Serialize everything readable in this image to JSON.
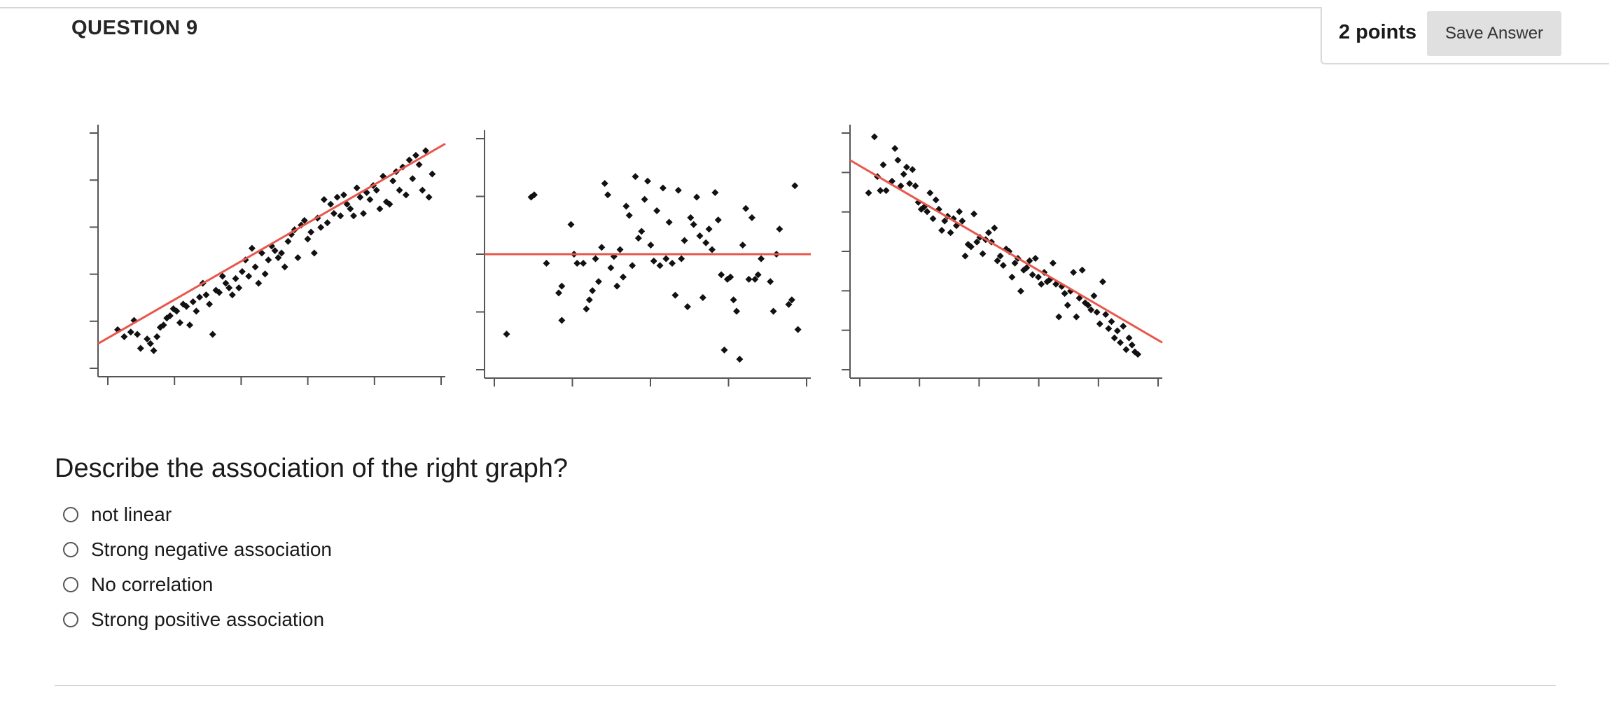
{
  "question": {
    "title": "QUESTION 9",
    "points": "2 points",
    "save_label": "Save Answer",
    "text": "Describe the association of the right graph?",
    "options": [
      {
        "label": "not linear",
        "selected": false
      },
      {
        "label": "Strong negative association",
        "selected": false
      },
      {
        "label": "No correlation",
        "selected": false
      },
      {
        "label": "Strong positive association",
        "selected": false
      }
    ]
  },
  "colors": {
    "trend_line": "#e8574c",
    "points": "#111111",
    "axis": "#555555",
    "button_bg": "#e0e0e0"
  },
  "chart_data": [
    {
      "type": "scatter",
      "title": "",
      "xlabel": "",
      "ylabel": "",
      "xlim": [
        0,
        10
      ],
      "ylim": [
        0,
        10
      ],
      "x_ticks": 6,
      "y_ticks": 6,
      "trend": [
        [
          0,
          1.0
        ],
        [
          10,
          9.6
        ]
      ],
      "points": [
        [
          0.3,
          1.6
        ],
        [
          0.5,
          1.3
        ],
        [
          0.7,
          1.5
        ],
        [
          0.8,
          2.0
        ],
        [
          0.9,
          1.4
        ],
        [
          1.0,
          0.8
        ],
        [
          1.2,
          1.2
        ],
        [
          1.3,
          1.0
        ],
        [
          1.4,
          0.7
        ],
        [
          1.5,
          1.3
        ],
        [
          1.6,
          1.7
        ],
        [
          1.7,
          1.8
        ],
        [
          1.8,
          2.1
        ],
        [
          1.9,
          2.2
        ],
        [
          2.0,
          2.5
        ],
        [
          2.1,
          2.4
        ],
        [
          2.2,
          1.9
        ],
        [
          2.3,
          2.7
        ],
        [
          2.4,
          2.6
        ],
        [
          2.5,
          1.8
        ],
        [
          2.6,
          2.8
        ],
        [
          2.7,
          2.4
        ],
        [
          2.8,
          3.0
        ],
        [
          2.9,
          3.6
        ],
        [
          3.0,
          3.1
        ],
        [
          3.1,
          2.7
        ],
        [
          3.2,
          1.4
        ],
        [
          3.3,
          3.3
        ],
        [
          3.4,
          3.2
        ],
        [
          3.5,
          3.9
        ],
        [
          3.6,
          3.6
        ],
        [
          3.7,
          3.4
        ],
        [
          3.8,
          3.1
        ],
        [
          3.9,
          3.8
        ],
        [
          4.0,
          3.4
        ],
        [
          4.1,
          4.1
        ],
        [
          4.2,
          4.6
        ],
        [
          4.3,
          3.9
        ],
        [
          4.4,
          5.1
        ],
        [
          4.5,
          4.3
        ],
        [
          4.6,
          3.6
        ],
        [
          4.7,
          4.9
        ],
        [
          4.8,
          4.0
        ],
        [
          4.9,
          4.6
        ],
        [
          5.0,
          5.2
        ],
        [
          5.1,
          5.0
        ],
        [
          5.2,
          4.7
        ],
        [
          5.3,
          4.9
        ],
        [
          5.4,
          4.3
        ],
        [
          5.5,
          5.4
        ],
        [
          5.6,
          5.7
        ],
        [
          5.7,
          5.9
        ],
        [
          5.8,
          4.7
        ],
        [
          5.9,
          6.1
        ],
        [
          6.0,
          6.3
        ],
        [
          6.1,
          5.5
        ],
        [
          6.2,
          5.8
        ],
        [
          6.3,
          4.9
        ],
        [
          6.4,
          6.4
        ],
        [
          6.5,
          6.0
        ],
        [
          6.6,
          7.2
        ],
        [
          6.7,
          6.2
        ],
        [
          6.8,
          7.0
        ],
        [
          6.9,
          6.6
        ],
        [
          7.0,
          7.3
        ],
        [
          7.1,
          6.5
        ],
        [
          7.2,
          7.4
        ],
        [
          7.3,
          7.0
        ],
        [
          7.4,
          6.8
        ],
        [
          7.5,
          6.5
        ],
        [
          7.6,
          7.7
        ],
        [
          7.7,
          7.3
        ],
        [
          7.8,
          6.6
        ],
        [
          7.9,
          7.5
        ],
        [
          8.0,
          7.2
        ],
        [
          8.1,
          7.8
        ],
        [
          8.2,
          7.6
        ],
        [
          8.3,
          6.8
        ],
        [
          8.4,
          8.2
        ],
        [
          8.5,
          7.1
        ],
        [
          8.6,
          7.0
        ],
        [
          8.7,
          8.0
        ],
        [
          8.8,
          8.4
        ],
        [
          8.9,
          7.6
        ],
        [
          9.0,
          8.6
        ],
        [
          9.1,
          7.4
        ],
        [
          9.2,
          8.9
        ],
        [
          9.3,
          8.1
        ],
        [
          9.4,
          9.1
        ],
        [
          9.5,
          8.7
        ],
        [
          9.6,
          7.6
        ],
        [
          9.7,
          9.3
        ],
        [
          9.8,
          7.3
        ],
        [
          9.9,
          8.3
        ]
      ]
    },
    {
      "type": "scatter",
      "title": "",
      "xlabel": "",
      "ylabel": "",
      "xlim": [
        0,
        10
      ],
      "ylim": [
        0,
        10
      ],
      "x_ticks": 5,
      "y_ticks": 5,
      "trend": [
        [
          0,
          5.0
        ],
        [
          10,
          5.0
        ]
      ],
      "points": [
        [
          0.4,
          1.5
        ],
        [
          1.2,
          7.5
        ],
        [
          1.3,
          7.6
        ],
        [
          1.7,
          4.6
        ],
        [
          2.1,
          3.3
        ],
        [
          2.2,
          3.6
        ],
        [
          2.2,
          2.1
        ],
        [
          2.5,
          6.3
        ],
        [
          2.6,
          5.0
        ],
        [
          2.7,
          4.6
        ],
        [
          2.9,
          4.6
        ],
        [
          3.0,
          2.6
        ],
        [
          3.1,
          3.0
        ],
        [
          3.2,
          3.4
        ],
        [
          3.3,
          4.8
        ],
        [
          3.4,
          3.8
        ],
        [
          3.5,
          5.3
        ],
        [
          3.6,
          8.1
        ],
        [
          3.7,
          7.6
        ],
        [
          3.8,
          4.4
        ],
        [
          3.9,
          4.9
        ],
        [
          4.0,
          3.6
        ],
        [
          4.1,
          5.2
        ],
        [
          4.2,
          4.0
        ],
        [
          4.3,
          7.1
        ],
        [
          4.4,
          6.7
        ],
        [
          4.5,
          4.5
        ],
        [
          4.6,
          8.4
        ],
        [
          4.7,
          5.7
        ],
        [
          4.8,
          6.0
        ],
        [
          4.9,
          7.4
        ],
        [
          5.0,
          8.2
        ],
        [
          5.1,
          5.4
        ],
        [
          5.2,
          4.7
        ],
        [
          5.3,
          6.9
        ],
        [
          5.4,
          4.5
        ],
        [
          5.5,
          7.9
        ],
        [
          5.6,
          4.8
        ],
        [
          5.7,
          6.4
        ],
        [
          5.8,
          4.6
        ],
        [
          5.9,
          3.2
        ],
        [
          6.0,
          7.8
        ],
        [
          6.1,
          4.8
        ],
        [
          6.2,
          5.6
        ],
        [
          6.3,
          2.7
        ],
        [
          6.4,
          6.6
        ],
        [
          6.5,
          6.3
        ],
        [
          6.6,
          7.5
        ],
        [
          6.7,
          5.8
        ],
        [
          6.8,
          3.1
        ],
        [
          6.9,
          5.5
        ],
        [
          7.0,
          6.1
        ],
        [
          7.1,
          5.2
        ],
        [
          7.2,
          7.7
        ],
        [
          7.3,
          6.5
        ],
        [
          7.4,
          4.1
        ],
        [
          7.5,
          0.8
        ],
        [
          7.6,
          3.9
        ],
        [
          7.7,
          4.0
        ],
        [
          7.8,
          3.0
        ],
        [
          7.9,
          2.5
        ],
        [
          8.0,
          0.4
        ],
        [
          8.1,
          5.4
        ],
        [
          8.2,
          7.0
        ],
        [
          8.3,
          3.9
        ],
        [
          8.4,
          6.6
        ],
        [
          8.5,
          3.9
        ],
        [
          8.6,
          4.1
        ],
        [
          8.7,
          4.8
        ],
        [
          9.0,
          3.8
        ],
        [
          9.1,
          2.5
        ],
        [
          9.2,
          5.0
        ],
        [
          9.3,
          6.1
        ],
        [
          9.6,
          2.8
        ],
        [
          9.7,
          3.0
        ],
        [
          9.8,
          8.0
        ],
        [
          9.9,
          1.7
        ]
      ]
    },
    {
      "type": "scatter",
      "title": "",
      "xlabel": "",
      "ylabel": "",
      "xlim": [
        0,
        10
      ],
      "ylim": [
        0,
        10
      ],
      "x_ticks": 6,
      "y_ticks": 7,
      "trend": [
        [
          0,
          8.9
        ],
        [
          10,
          1.1
        ]
      ],
      "points": [
        [
          0.3,
          7.5
        ],
        [
          0.5,
          9.9
        ],
        [
          0.6,
          8.2
        ],
        [
          0.7,
          7.6
        ],
        [
          0.8,
          8.7
        ],
        [
          0.9,
          7.6
        ],
        [
          1.1,
          8.0
        ],
        [
          1.2,
          9.4
        ],
        [
          1.3,
          8.9
        ],
        [
          1.4,
          7.8
        ],
        [
          1.5,
          8.3
        ],
        [
          1.6,
          8.6
        ],
        [
          1.7,
          7.9
        ],
        [
          1.8,
          8.5
        ],
        [
          1.9,
          7.8
        ],
        [
          2.0,
          7.1
        ],
        [
          2.1,
          6.8
        ],
        [
          2.2,
          6.9
        ],
        [
          2.3,
          6.7
        ],
        [
          2.4,
          7.5
        ],
        [
          2.5,
          6.4
        ],
        [
          2.6,
          7.2
        ],
        [
          2.7,
          6.8
        ],
        [
          2.8,
          5.9
        ],
        [
          2.9,
          6.3
        ],
        [
          3.0,
          6.5
        ],
        [
          3.1,
          5.8
        ],
        [
          3.2,
          6.4
        ],
        [
          3.3,
          6.1
        ],
        [
          3.4,
          6.7
        ],
        [
          3.5,
          6.3
        ],
        [
          3.6,
          4.8
        ],
        [
          3.7,
          5.3
        ],
        [
          3.8,
          5.2
        ],
        [
          3.9,
          6.6
        ],
        [
          4.0,
          5.4
        ],
        [
          4.1,
          5.6
        ],
        [
          4.2,
          4.9
        ],
        [
          4.3,
          5.5
        ],
        [
          4.4,
          5.8
        ],
        [
          4.5,
          5.4
        ],
        [
          4.6,
          6.0
        ],
        [
          4.7,
          4.6
        ],
        [
          4.8,
          4.8
        ],
        [
          4.9,
          4.4
        ],
        [
          5.0,
          5.1
        ],
        [
          5.1,
          5.0
        ],
        [
          5.2,
          3.9
        ],
        [
          5.3,
          4.5
        ],
        [
          5.4,
          4.7
        ],
        [
          5.5,
          3.3
        ],
        [
          5.6,
          4.2
        ],
        [
          5.7,
          4.3
        ],
        [
          5.8,
          4.6
        ],
        [
          5.9,
          4.0
        ],
        [
          6.0,
          4.7
        ],
        [
          6.1,
          3.9
        ],
        [
          6.2,
          3.6
        ],
        [
          6.3,
          4.1
        ],
        [
          6.4,
          3.7
        ],
        [
          6.5,
          3.8
        ],
        [
          6.6,
          4.5
        ],
        [
          6.7,
          3.6
        ],
        [
          6.8,
          2.2
        ],
        [
          6.9,
          3.5
        ],
        [
          7.0,
          3.2
        ],
        [
          7.1,
          2.7
        ],
        [
          7.2,
          3.3
        ],
        [
          7.3,
          4.1
        ],
        [
          7.4,
          2.2
        ],
        [
          7.5,
          3.0
        ],
        [
          7.6,
          4.2
        ],
        [
          7.7,
          2.8
        ],
        [
          7.8,
          2.7
        ],
        [
          7.9,
          2.5
        ],
        [
          8.0,
          3.1
        ],
        [
          8.1,
          2.4
        ],
        [
          8.2,
          1.9
        ],
        [
          8.3,
          3.7
        ],
        [
          8.4,
          2.3
        ],
        [
          8.5,
          1.7
        ],
        [
          8.6,
          2.0
        ],
        [
          8.7,
          1.3
        ],
        [
          8.8,
          1.6
        ],
        [
          8.9,
          1.1
        ],
        [
          9.0,
          1.8
        ],
        [
          9.1,
          0.8
        ],
        [
          9.2,
          1.3
        ],
        [
          9.3,
          1.0
        ],
        [
          9.4,
          0.7
        ],
        [
          9.5,
          0.6
        ]
      ]
    }
  ]
}
